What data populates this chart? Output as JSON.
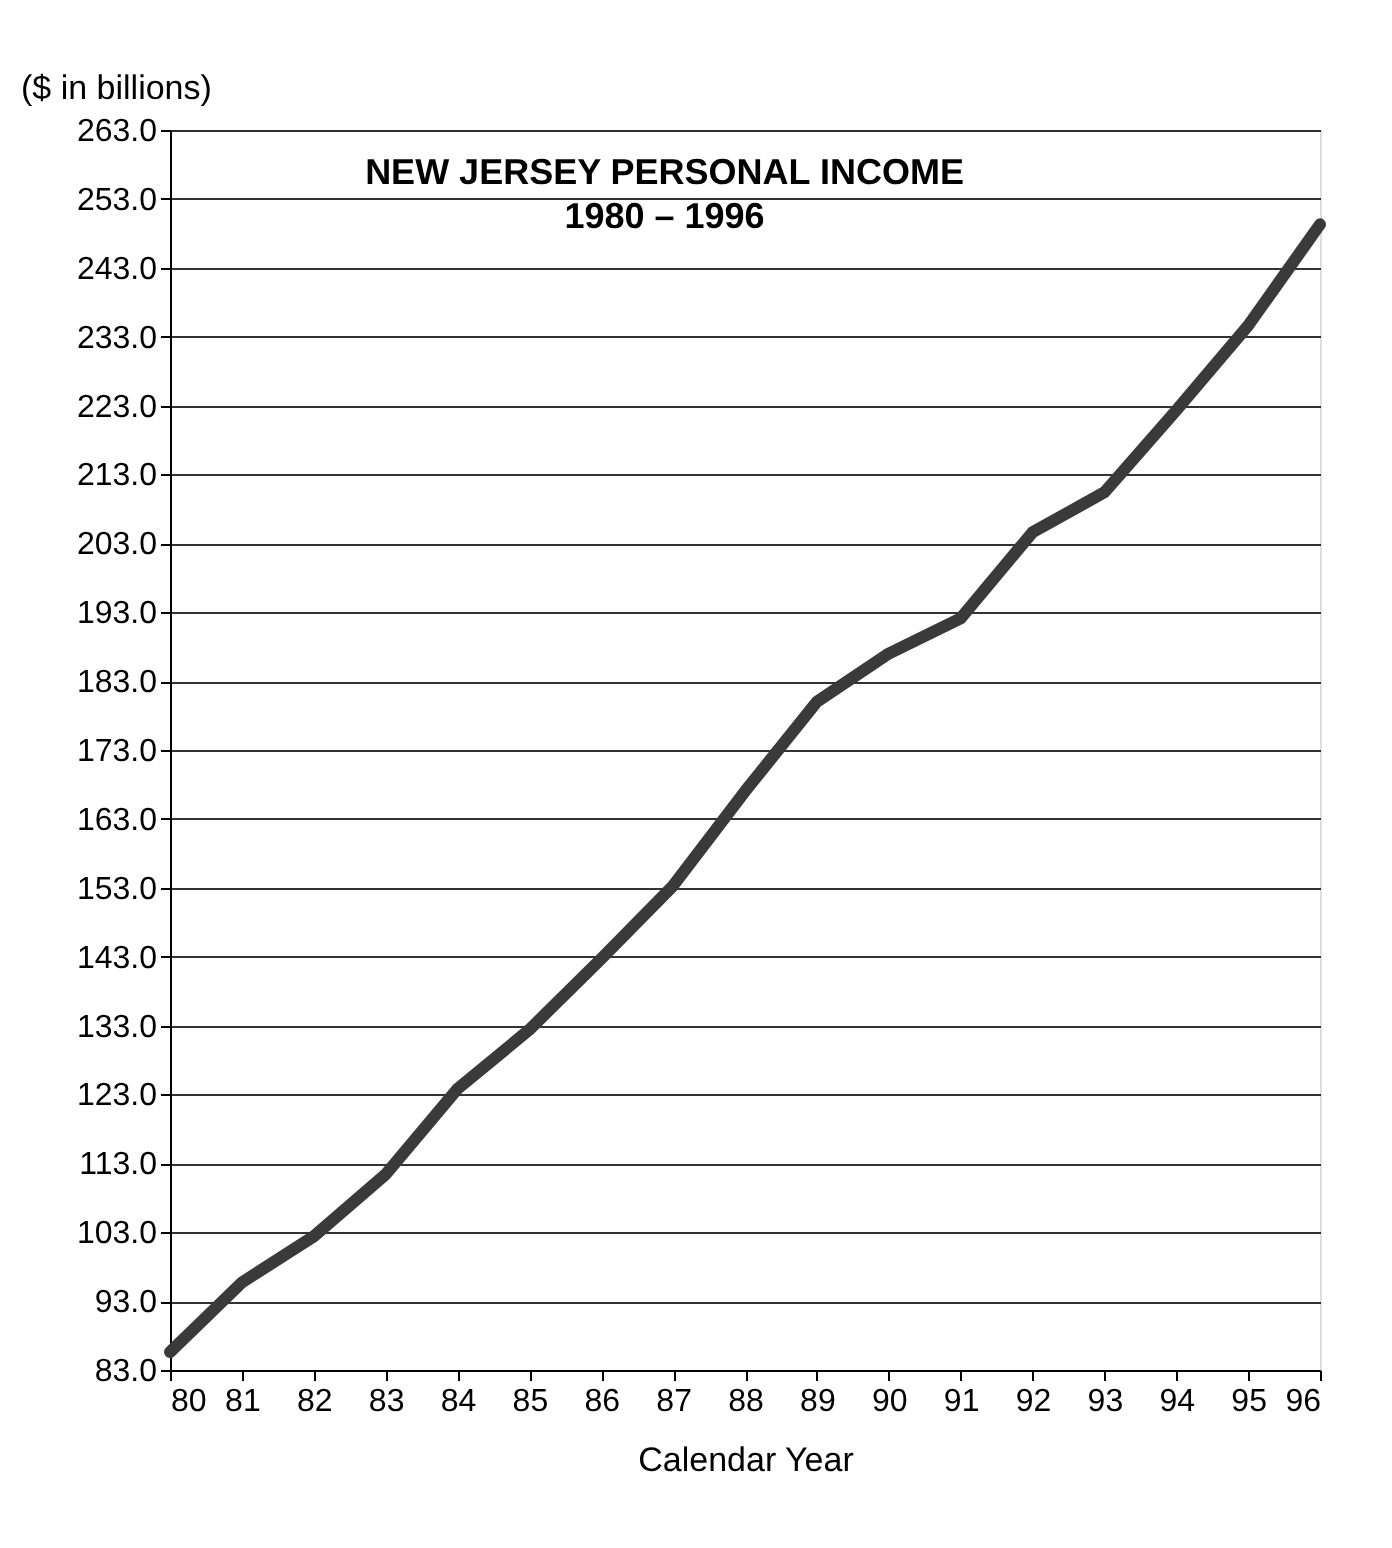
{
  "chart_data": {
    "type": "line",
    "title": "NEW JERSEY PERSONAL INCOME",
    "subtitle": "1980 – 1996",
    "xlabel": "Calendar Year",
    "ylabel": "($ in billions)",
    "x": [
      80,
      81,
      82,
      83,
      84,
      85,
      86,
      87,
      88,
      89,
      90,
      91,
      92,
      93,
      94,
      95,
      96
    ],
    "series": [
      {
        "color": "#3a3a3a",
        "values": [
          85.6,
          95.7,
          102.4,
          111.4,
          123.8,
          132.4,
          142.7,
          153.3,
          167,
          180,
          187,
          192.1,
          204.6,
          210.4,
          222.3,
          234.6,
          249.3
        ]
      }
    ],
    "xlim": [
      80,
      96
    ],
    "xticks": [
      80,
      81,
      82,
      83,
      84,
      85,
      86,
      87,
      88,
      89,
      90,
      91,
      92,
      93,
      94,
      95,
      96
    ],
    "ylim": [
      83,
      263
    ],
    "yticks": [
      {
        "value": 83,
        "label": "83.0"
      },
      {
        "value": 93,
        "label": "93.0"
      },
      {
        "value": 103,
        "label": "103.0"
      },
      {
        "value": 113,
        "label": "113.0"
      },
      {
        "value": 123,
        "label": "123.0"
      },
      {
        "value": 133,
        "label": "133.0"
      },
      {
        "value": 143,
        "label": "143.0"
      },
      {
        "value": 153,
        "label": "153.0"
      },
      {
        "value": 163,
        "label": "163.0"
      },
      {
        "value": 173,
        "label": "173.0"
      },
      {
        "value": 183,
        "label": "183.0"
      },
      {
        "value": 193,
        "label": "193.0"
      },
      {
        "value": 203,
        "label": "203.0"
      },
      {
        "value": 213,
        "label": "213.0"
      },
      {
        "value": 223,
        "label": "223.0"
      },
      {
        "value": 233,
        "label": "233.0"
      },
      {
        "value": 243,
        "label": "243.0"
      },
      {
        "value": 253,
        "label": "253.0"
      },
      {
        "value": 263,
        "label": "263.0"
      }
    ],
    "grid": "y",
    "marker": "none",
    "line_style": "solid"
  }
}
